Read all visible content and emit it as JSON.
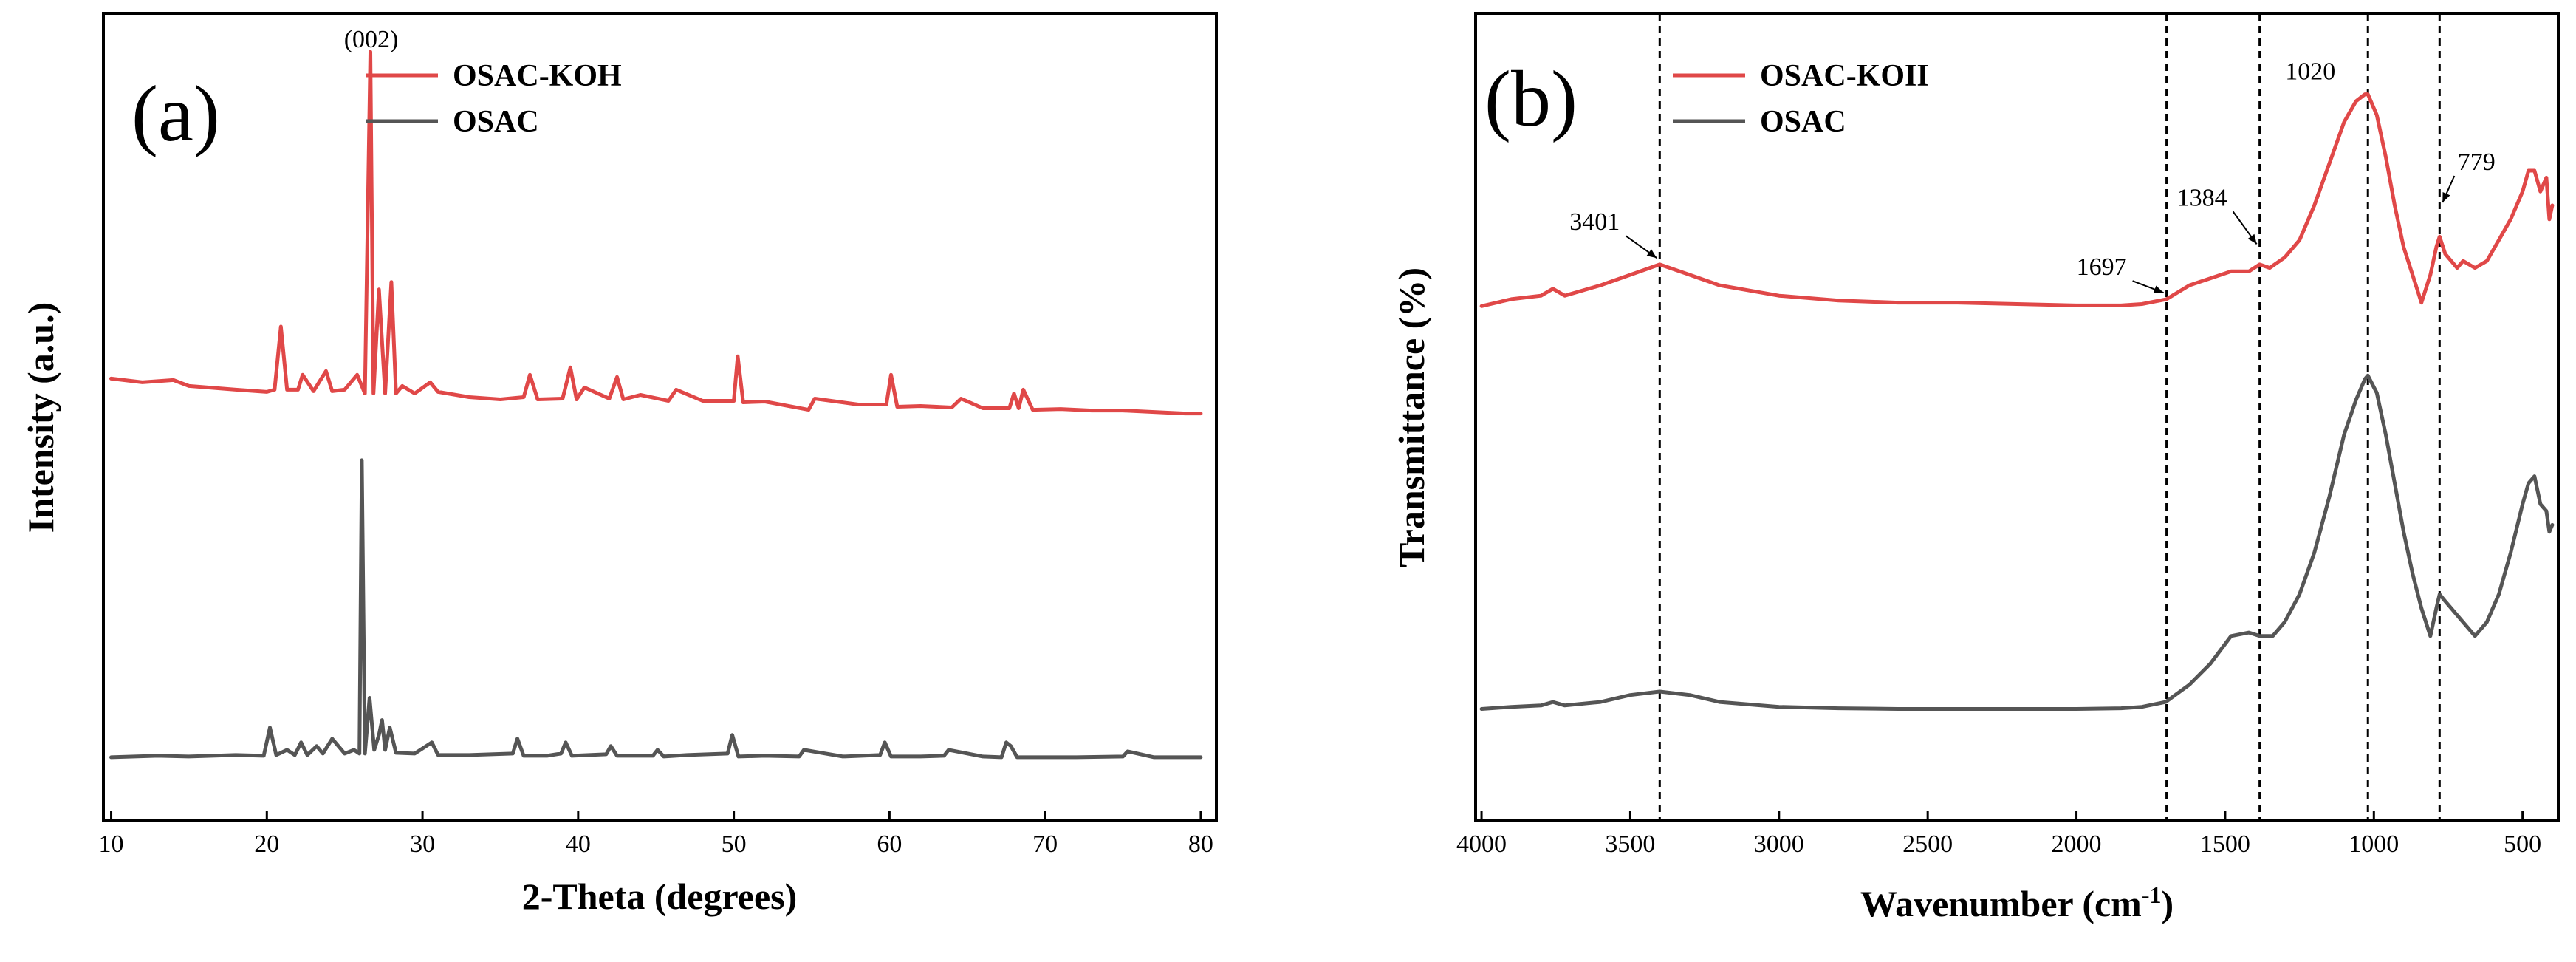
{
  "chart_data": [
    {
      "type": "line",
      "panel": "(a)",
      "xlabel": "2-Theta (degrees)",
      "ylabel": "Intensity (a.u.)",
      "xlim": [
        9.5,
        81
      ],
      "xticks": [
        10,
        20,
        30,
        40,
        50,
        60,
        70,
        80
      ],
      "ylim": [
        0,
        100
      ],
      "y_ticks_shown": false,
      "legend": {
        "placement": "top-center",
        "entries": [
          "OSAC-KOH",
          "OSAC"
        ]
      },
      "annotations": [
        {
          "text": "(002)",
          "x": 26.7,
          "y": 97
        }
      ],
      "series": [
        {
          "name": "OSAC-KOH",
          "color": "#e04848",
          "x": [
            10,
            12,
            14,
            15,
            18,
            20,
            20.5,
            20.9,
            21.3,
            22,
            22.3,
            23,
            23.8,
            24.2,
            25,
            25.8,
            26.3,
            26.65,
            26.85,
            27.2,
            27.6,
            28.0,
            28.3,
            28.7,
            29.5,
            30.5,
            31,
            33,
            35,
            36.5,
            36.9,
            37.4,
            39,
            39.5,
            39.9,
            40.4,
            42,
            42.5,
            42.9,
            44,
            45.8,
            46.3,
            48,
            50,
            50.25,
            50.6,
            52,
            54.8,
            55.2,
            58,
            59.8,
            60.1,
            60.5,
            62,
            64,
            64.6,
            66,
            67.7,
            68.0,
            68.3,
            68.6,
            69.2,
            71,
            73,
            75,
            77,
            79,
            80
          ],
          "y": [
            53,
            52.5,
            52.8,
            52,
            51.5,
            51.2,
            51.5,
            60,
            51.5,
            51.5,
            53.5,
            51.3,
            54,
            51.3,
            51.5,
            53.5,
            51,
            97,
            51,
            65,
            51,
            66,
            51,
            52,
            51,
            52.5,
            51.2,
            50.5,
            50.2,
            50.5,
            53.5,
            50.2,
            50.3,
            54.5,
            50.2,
            51.8,
            50.3,
            53.2,
            50.2,
            50.8,
            50,
            51.5,
            50,
            50,
            56,
            49.8,
            49.9,
            48.8,
            50.3,
            49.5,
            49.5,
            53.5,
            49.2,
            49.3,
            49.1,
            50.3,
            49,
            49,
            51,
            49,
            51.5,
            48.8,
            48.9,
            48.7,
            48.7,
            48.5,
            48.3,
            48.3
          ]
        },
        {
          "name": "OSAC",
          "color": "#555555",
          "x": [
            10,
            13,
            15,
            18,
            19.8,
            20.2,
            20.6,
            21.3,
            21.8,
            22.2,
            22.6,
            23.2,
            23.6,
            24.2,
            25,
            25.6,
            25.95,
            26.1,
            26.3,
            26.6,
            26.9,
            27.2,
            27.4,
            27.6,
            27.9,
            28.3,
            29.5,
            30.6,
            31,
            33,
            35.8,
            36.1,
            36.5,
            38,
            38.9,
            39.2,
            39.6,
            41.8,
            42.1,
            42.5,
            44.8,
            45.1,
            45.5,
            47,
            49.6,
            49.9,
            50.3,
            52,
            54.2,
            54.5,
            57,
            59.4,
            59.7,
            60.1,
            62,
            63.5,
            63.8,
            66,
            67.2,
            67.5,
            67.8,
            68.2,
            70,
            72,
            75,
            75.3,
            77,
            80
          ],
          "y": [
            2,
            2.2,
            2.1,
            2.3,
            2.2,
            6,
            2.3,
            3,
            2.3,
            4,
            2.3,
            3.5,
            2.5,
            4.5,
            2.5,
            3,
            2.5,
            42,
            2.5,
            10,
            3,
            5,
            7,
            3,
            6,
            2.6,
            2.5,
            4,
            2.3,
            2.3,
            2.5,
            4.5,
            2.2,
            2.2,
            2.5,
            4,
            2.2,
            2.4,
            3.5,
            2.2,
            2.2,
            3,
            2.1,
            2.3,
            2.5,
            5,
            2.1,
            2.2,
            2.1,
            3,
            2.1,
            2.3,
            4,
            2.1,
            2.1,
            2.2,
            3,
            2.1,
            2,
            4,
            3.5,
            2,
            2,
            2,
            2.1,
            2.8,
            2,
            2
          ]
        }
      ]
    },
    {
      "type": "line",
      "panel": "(b)",
      "xlabel": "Wavenumber (cm",
      "xlabel_sup": "-1",
      "xlabel_close": ")",
      "ylabel": "Transmittance (%)",
      "xlim": [
        4020,
        380
      ],
      "xticks": [
        4000,
        3500,
        3000,
        2500,
        2000,
        1500,
        1000,
        500
      ],
      "ylim": [
        0,
        100
      ],
      "y_ticks_shown": false,
      "legend": {
        "placement": "top-left",
        "entries": [
          "OSAC-KOII",
          "OSAC"
        ]
      },
      "vlines": [
        3401,
        1697,
        1384,
        1020,
        779
      ],
      "annotations": [
        {
          "text": "3401",
          "x": 3401,
          "y": 72
        },
        {
          "text": "1697",
          "x": 1697,
          "y": 67
        },
        {
          "text": "1384",
          "x": 1384,
          "y": 74
        },
        {
          "text": "1020",
          "x": 1020,
          "y": 96
        },
        {
          "text": "779",
          "x": 779,
          "y": 80
        }
      ],
      "series": [
        {
          "name": "OSAC-KOII",
          "color": "#e04848",
          "x": [
            4000,
            3900,
            3800,
            3760,
            3720,
            3600,
            3500,
            3401,
            3300,
            3200,
            3000,
            2800,
            2600,
            2400,
            2200,
            2000,
            1850,
            1780,
            1697,
            1620,
            1550,
            1480,
            1420,
            1384,
            1350,
            1300,
            1250,
            1200,
            1150,
            1100,
            1060,
            1030,
            1020,
            990,
            960,
            930,
            900,
            870,
            840,
            810,
            790,
            779,
            760,
            720,
            700,
            660,
            620,
            580,
            540,
            500,
            480,
            460,
            440,
            420,
            410,
            400
          ],
          "y": [
            65.5,
            66.5,
            67,
            68,
            67,
            68.5,
            70,
            71.5,
            70,
            68.5,
            67,
            66.3,
            66,
            66,
            65.8,
            65.6,
            65.6,
            65.8,
            66.5,
            68.5,
            69.5,
            70.5,
            70.5,
            71.5,
            71,
            72.5,
            75,
            80,
            86,
            92,
            95,
            96,
            96,
            93,
            87,
            80,
            74,
            70,
            66,
            70,
            74,
            75.5,
            73,
            71,
            72,
            71,
            72,
            75,
            78,
            82,
            85,
            85,
            82,
            84,
            78,
            80
          ]
        },
        {
          "name": "OSAC",
          "color": "#555555",
          "x": [
            4000,
            3900,
            3800,
            3760,
            3720,
            3600,
            3500,
            3401,
            3300,
            3200,
            3000,
            2800,
            2600,
            2400,
            2200,
            2000,
            1850,
            1780,
            1700,
            1620,
            1550,
            1480,
            1420,
            1384,
            1340,
            1300,
            1250,
            1200,
            1150,
            1100,
            1060,
            1030,
            1020,
            990,
            960,
            930,
            900,
            870,
            840,
            810,
            790,
            779,
            760,
            720,
            700,
            660,
            620,
            580,
            540,
            500,
            480,
            460,
            440,
            420,
            410,
            400
          ],
          "y": [
            7.5,
            7.8,
            8,
            8.5,
            8,
            8.5,
            9.5,
            10,
            9.5,
            8.5,
            7.8,
            7.6,
            7.5,
            7.5,
            7.5,
            7.5,
            7.6,
            7.8,
            8.5,
            11,
            14,
            18,
            18.5,
            18,
            18,
            20,
            24,
            30,
            38,
            47,
            52,
            55,
            55.5,
            53,
            47,
            40,
            33,
            27,
            22,
            18,
            22,
            24,
            23,
            21,
            20,
            18,
            20,
            24,
            30,
            37,
            40,
            41,
            37,
            36,
            33,
            34
          ]
        }
      ]
    }
  ]
}
